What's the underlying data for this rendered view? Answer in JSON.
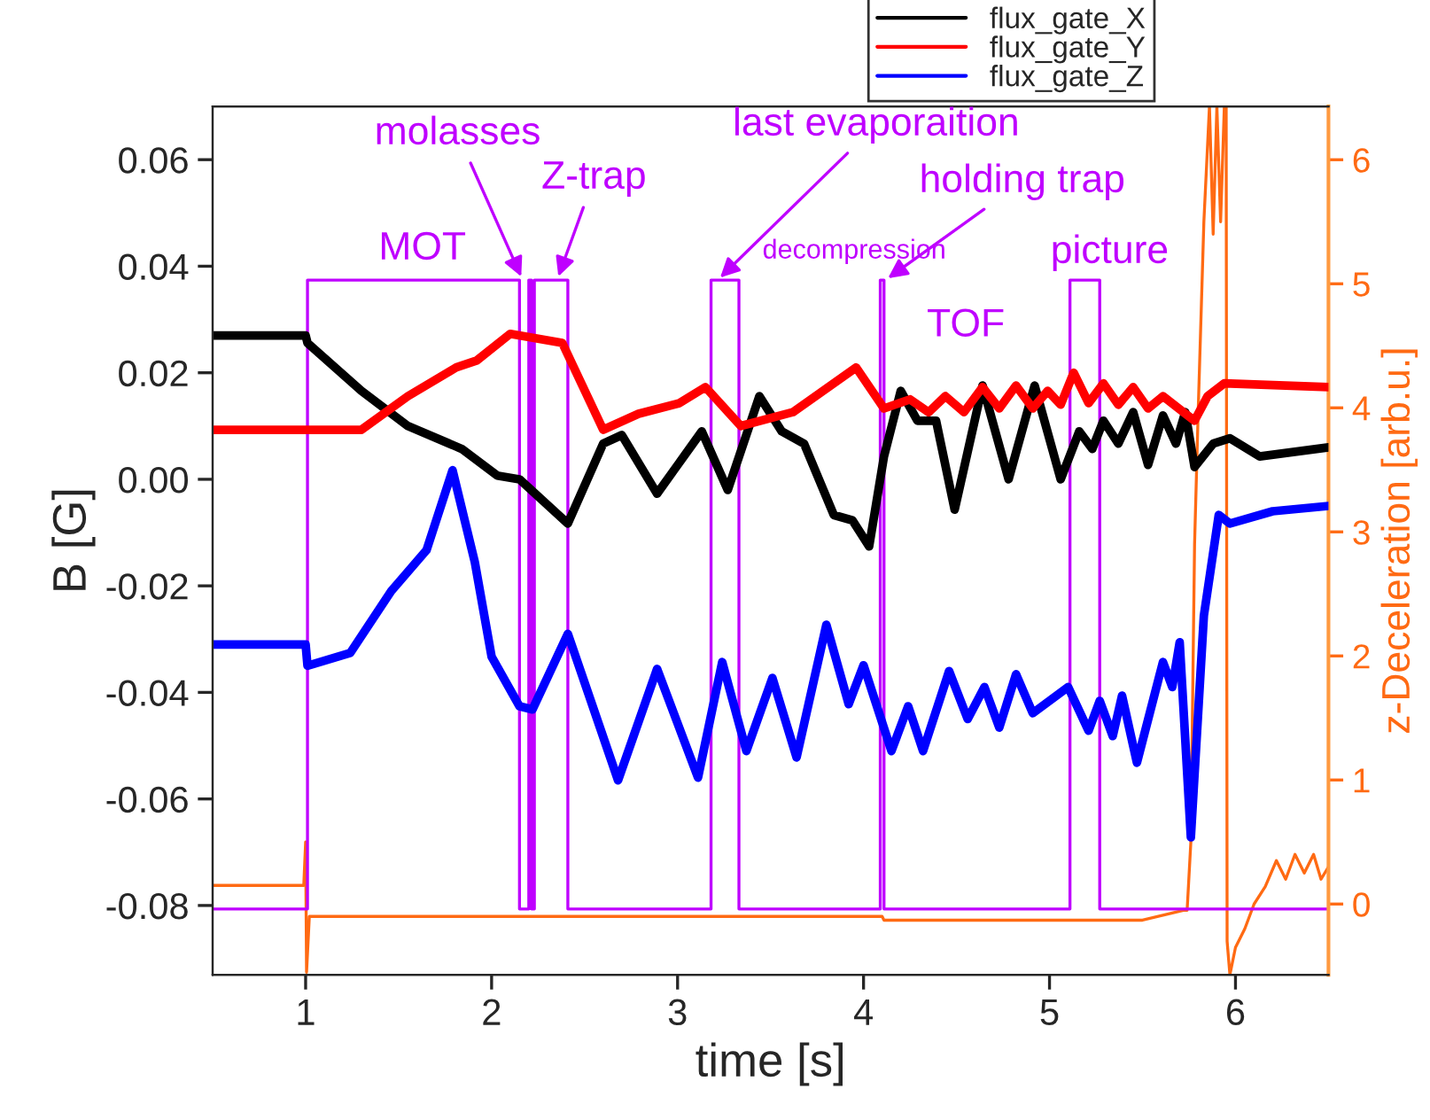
{
  "chart_data": {
    "type": "line",
    "xlabel": "time [s]",
    "ylabel": "B [G]",
    "y2label": "z-Deceleration [arb.u.]",
    "xlim": [
      0.5,
      6.5
    ],
    "xticks": [
      1,
      2,
      3,
      4,
      5,
      6
    ],
    "ylim": [
      -0.093,
      0.07
    ],
    "yticks": [
      {
        "value": -0.08,
        "label": "-0.08"
      },
      {
        "value": -0.06,
        "label": "-0.06"
      },
      {
        "value": -0.04,
        "label": "-0.04"
      },
      {
        "value": -0.02,
        "label": "-0.02"
      },
      {
        "value": 0.0,
        "label": "0.00"
      },
      {
        "value": 0.02,
        "label": "0.02"
      },
      {
        "value": 0.04,
        "label": "0.04"
      },
      {
        "value": 0.06,
        "label": "0.06"
      }
    ],
    "y2lim": [
      -0.57,
      6.43
    ],
    "y2ticks": [
      0,
      1,
      2,
      3,
      4,
      5,
      6
    ],
    "grid": false,
    "legend": "top right",
    "line_style": "solid",
    "marker": "none",
    "series": [
      {
        "name": "flux_gate_X",
        "color": "#000000",
        "x": [
          0.5,
          1.0,
          1.01,
          1.3,
          1.55,
          1.84,
          2.03,
          2.15,
          2.41,
          2.6,
          2.7,
          2.89,
          3.13,
          3.27,
          3.44,
          3.56,
          3.68,
          3.84,
          3.94,
          4.03,
          4.11,
          4.2,
          4.29,
          4.39,
          4.49,
          4.64,
          4.78,
          4.92,
          5.06,
          5.16,
          5.23,
          5.29,
          5.37,
          5.45,
          5.53,
          5.61,
          5.68,
          5.73,
          5.78,
          5.88,
          5.97,
          6.13,
          6.5
        ],
        "values": [
          0.027,
          0.027,
          0.0256,
          0.0166,
          0.01,
          0.0057,
          0.0007,
          0.0,
          -0.0083,
          0.0067,
          0.0083,
          -0.0027,
          0.009,
          -0.002,
          0.0156,
          0.009,
          0.0067,
          -0.0067,
          -0.0077,
          -0.0126,
          0.0043,
          0.0166,
          0.011,
          0.011,
          -0.0057,
          0.0176,
          0.0,
          0.0176,
          0.0,
          0.009,
          0.0057,
          0.011,
          0.0067,
          0.0126,
          0.0027,
          0.012,
          0.0067,
          0.0126,
          0.0023,
          0.0067,
          0.0077,
          0.0043,
          0.006
        ]
      },
      {
        "name": "flux_gate_Y",
        "color": "#ff0000",
        "x": [
          0.5,
          1.0,
          1.3,
          1.55,
          1.81,
          1.92,
          2.1,
          2.38,
          2.6,
          2.79,
          3.01,
          3.15,
          3.34,
          3.62,
          3.96,
          4.11,
          4.25,
          4.35,
          4.44,
          4.54,
          4.64,
          4.73,
          4.82,
          4.91,
          4.99,
          5.06,
          5.13,
          5.21,
          5.29,
          5.37,
          5.45,
          5.53,
          5.61,
          5.72,
          5.78,
          5.85,
          5.94,
          6.5
        ],
        "values": [
          0.0093,
          0.0093,
          0.0093,
          0.0156,
          0.021,
          0.0223,
          0.0273,
          0.0256,
          0.0093,
          0.0123,
          0.0143,
          0.0173,
          0.01,
          0.0126,
          0.021,
          0.0133,
          0.015,
          0.0126,
          0.0156,
          0.0126,
          0.0173,
          0.0133,
          0.0176,
          0.0133,
          0.0166,
          0.014,
          0.02,
          0.0143,
          0.018,
          0.014,
          0.0173,
          0.0133,
          0.0156,
          0.0126,
          0.011,
          0.0156,
          0.018,
          0.0173
        ]
      },
      {
        "name": "flux_gate_Z",
        "color": "#0000ff",
        "x": [
          0.5,
          1.0,
          1.01,
          1.24,
          1.46,
          1.65,
          1.79,
          1.91,
          2.0,
          2.15,
          2.22,
          2.41,
          2.68,
          2.89,
          3.11,
          3.24,
          3.37,
          3.51,
          3.64,
          3.8,
          3.92,
          4.0,
          4.15,
          4.24,
          4.32,
          4.46,
          4.56,
          4.65,
          4.73,
          4.82,
          4.91,
          5.1,
          5.21,
          5.27,
          5.34,
          5.39,
          5.47,
          5.61,
          5.66,
          5.7,
          5.76,
          5.83,
          5.91,
          5.97,
          6.2,
          6.5
        ],
        "values": [
          -0.031,
          -0.031,
          -0.035,
          -0.0326,
          -0.021,
          -0.0133,
          0.0017,
          -0.0156,
          -0.0333,
          -0.0426,
          -0.0432,
          -0.029,
          -0.0565,
          -0.0356,
          -0.056,
          -0.0343,
          -0.051,
          -0.0373,
          -0.0522,
          -0.0273,
          -0.0422,
          -0.0349,
          -0.051,
          -0.0426,
          -0.051,
          -0.036,
          -0.045,
          -0.039,
          -0.0466,
          -0.0366,
          -0.0439,
          -0.039,
          -0.0472,
          -0.0416,
          -0.0482,
          -0.0406,
          -0.0532,
          -0.0343,
          -0.039,
          -0.0306,
          -0.0672,
          -0.0256,
          -0.0067,
          -0.0083,
          -0.006,
          -0.005
        ]
      },
      {
        "color": "#ff6a13",
        "axis": "y2",
        "x": [
          0.5,
          0.99,
          1.0,
          1.005,
          1.02,
          1.5,
          2.0,
          3.0,
          4.0,
          4.1,
          4.11,
          5.0,
          5.5,
          5.72,
          5.74,
          5.76,
          5.78,
          5.8,
          5.83,
          5.86,
          5.88,
          5.9,
          5.92,
          5.94,
          5.95,
          5.955,
          5.97,
          6.0,
          6.05,
          6.1,
          6.16,
          6.22,
          6.27,
          6.32,
          6.37,
          6.42,
          6.46,
          6.5
        ],
        "values": [
          0.15,
          0.15,
          0.5,
          -0.55,
          -0.1,
          -0.1,
          -0.1,
          -0.1,
          -0.1,
          -0.1,
          -0.13,
          -0.13,
          -0.13,
          -0.05,
          -0.05,
          0.5,
          2.9,
          4.0,
          5.5,
          6.43,
          5.4,
          6.43,
          5.5,
          6.43,
          6.43,
          -0.3,
          -0.57,
          -0.35,
          -0.2,
          0.0,
          0.14,
          0.35,
          0.2,
          0.4,
          0.25,
          0.4,
          0.2,
          0.3
        ]
      },
      {
        "color": "#bf00ff",
        "axis": "y2",
        "x": [
          0.5,
          1.01,
          1.01,
          2.15,
          2.15,
          2.2,
          2.2,
          2.215,
          2.215,
          2.23,
          2.23,
          2.41,
          2.41,
          3.18,
          3.18,
          3.33,
          3.33,
          4.09,
          4.09,
          4.11,
          4.11,
          5.11,
          5.11,
          5.27,
          5.27,
          6.5
        ],
        "values": [
          -0.04,
          -0.04,
          5.03,
          5.03,
          -0.04,
          -0.04,
          5.03,
          5.03,
          -0.04,
          -0.04,
          5.03,
          5.03,
          -0.04,
          -0.04,
          5.03,
          5.03,
          -0.04,
          -0.04,
          5.03,
          5.03,
          -0.04,
          -0.04,
          5.03,
          5.03,
          -0.04,
          -0.04
        ]
      }
    ],
    "annotations": [
      {
        "text": "MOT",
        "x": 1.58,
        "y": 0.0372
      },
      {
        "text": "molasses",
        "x": 2.17,
        "y": 0.0372
      },
      {
        "text": "Z-trap",
        "x": 2.35,
        "y": 0.0372
      },
      {
        "text": "last evaporaition",
        "x": 3.21,
        "y": 0.0372
      },
      "decompression",
      {
        "text": "holding trap",
        "x": 4.11,
        "y": 0.0372
      },
      "TOF",
      {
        "text": "picture",
        "x": 5.19,
        "y": 0.0372
      }
    ]
  }
}
